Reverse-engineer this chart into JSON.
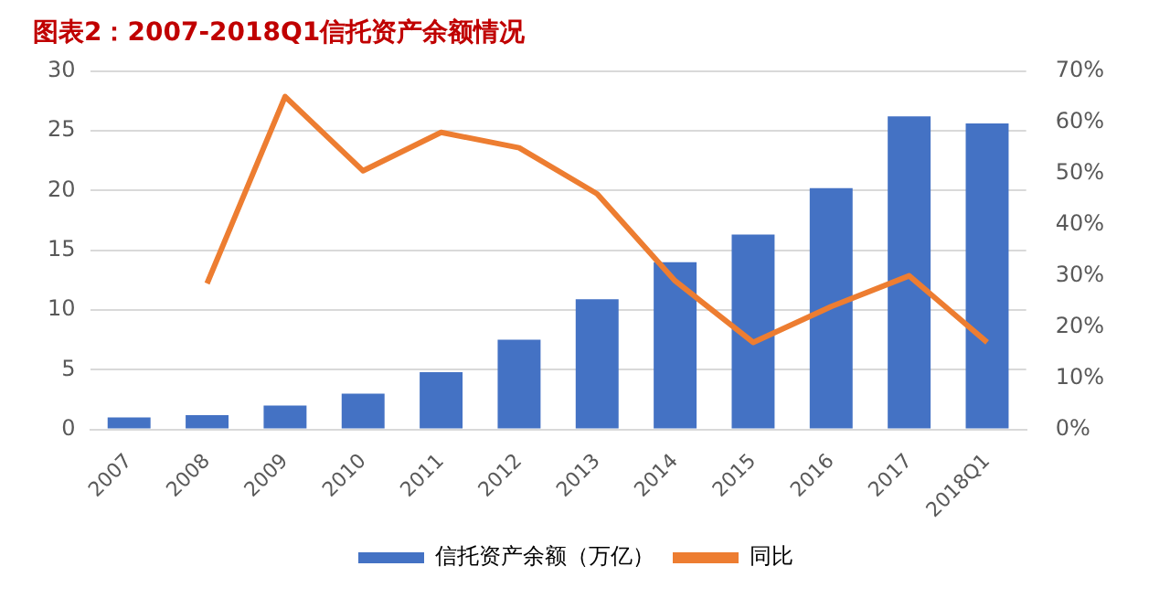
{
  "chart_data": {
    "type": "bar",
    "title": "图表2：2007-2018Q1信托资产余额情况",
    "categories": [
      "2007",
      "2008",
      "2009",
      "2010",
      "2011",
      "2012",
      "2013",
      "2014",
      "2015",
      "2016",
      "2017",
      "2018Q1"
    ],
    "series": [
      {
        "name": "信托资产余额（万亿）",
        "color": "#4472c4",
        "values": [
          1.0,
          1.2,
          2.0,
          3.0,
          4.8,
          7.5,
          10.9,
          14.0,
          16.3,
          20.2,
          26.2,
          25.6
        ]
      },
      {
        "name": "同比",
        "type": "line",
        "axis": "y2",
        "color": "#ed7d31",
        "values": [
          null,
          28.5,
          65,
          50.5,
          58,
          55,
          46,
          29,
          17,
          24,
          30,
          17
        ]
      }
    ],
    "ylim": [
      0,
      30
    ],
    "yticks": [
      0,
      5,
      10,
      15,
      20,
      25,
      30
    ],
    "y2lim": [
      0,
      70
    ],
    "y2ticks": [
      {
        "value": 0,
        "label": "0%"
      },
      {
        "value": 10,
        "label": "10%"
      },
      {
        "value": 20,
        "label": "20%"
      },
      {
        "value": 30,
        "label": "30%"
      },
      {
        "value": 40,
        "label": "40%"
      },
      {
        "value": 50,
        "label": "50%"
      },
      {
        "value": 60,
        "label": "60%"
      },
      {
        "value": 70,
        "label": "70%"
      }
    ],
    "grid": "y",
    "legend": "bottom",
    "marker": "none",
    "line_style": "solid"
  }
}
